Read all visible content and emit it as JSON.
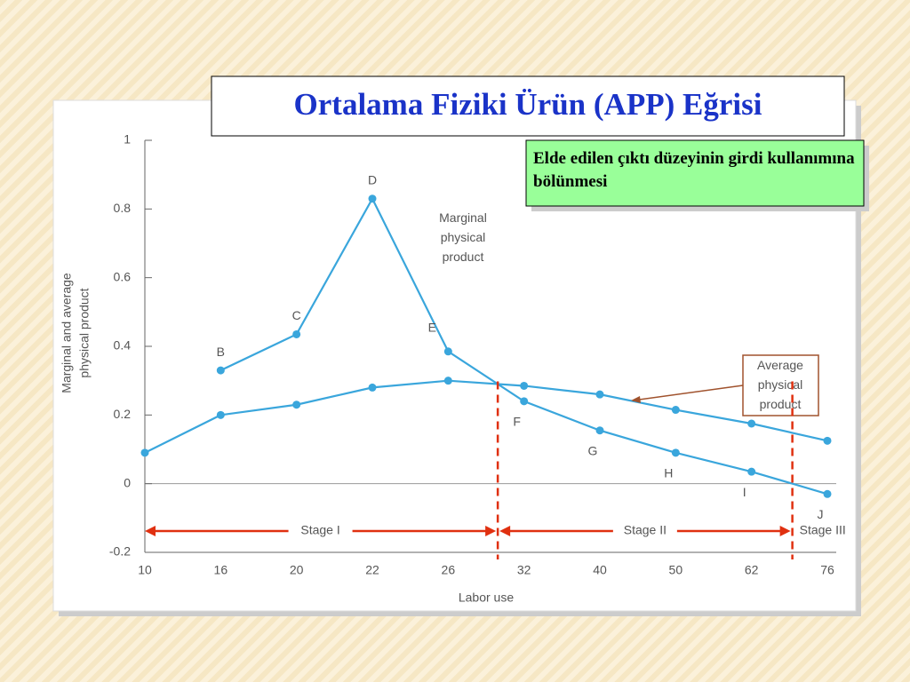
{
  "title": "Ortalama Fiziki Ürün (APP) Eğrisi",
  "note": "Elde edilen çıktı düzeyinin girdi kullanımına bölünmesi",
  "chart_data": {
    "type": "line",
    "categories": [
      "10",
      "16",
      "20",
      "22",
      "26",
      "32",
      "40",
      "50",
      "62",
      "76"
    ],
    "series": [
      {
        "name": "Marginal physical product",
        "color": "#3aa6dc",
        "values": [
          null,
          0.33,
          0.435,
          0.83,
          0.385,
          0.24,
          0.155,
          0.09,
          0.035,
          -0.03
        ],
        "point_labels": [
          null,
          "B",
          "C",
          "D",
          "E",
          "F",
          "G",
          "H",
          "I",
          "J"
        ]
      },
      {
        "name": "Average physical product",
        "color": "#3aa6dc",
        "values": [
          0.09,
          0.2,
          0.23,
          0.28,
          0.3,
          0.285,
          0.26,
          0.215,
          0.175,
          0.125
        ]
      }
    ],
    "ylim": [
      -0.2,
      1
    ],
    "yticks": [
      -0.2,
      0,
      0.2,
      0.4,
      0.6,
      0.8,
      1
    ],
    "xlabel": "Labor use",
    "ylabel": [
      "Marginal and average",
      "physical product"
    ],
    "stages": [
      "Stage I",
      "Stage II",
      "Stage III"
    ]
  }
}
